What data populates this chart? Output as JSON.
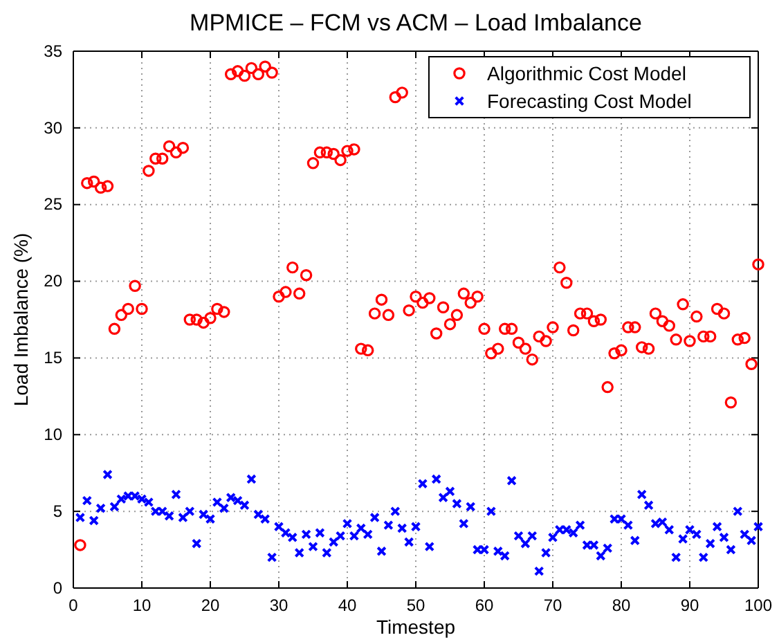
{
  "chart_data": {
    "type": "scatter",
    "title": "MPMICE – FCM vs ACM – Load Imbalance",
    "xlabel": "Timestep",
    "ylabel": "Load Imbalance (%)",
    "x": [
      1,
      2,
      3,
      4,
      5,
      6,
      7,
      8,
      9,
      10,
      11,
      12,
      13,
      14,
      15,
      16,
      17,
      18,
      19,
      20,
      21,
      22,
      23,
      24,
      25,
      26,
      27,
      28,
      29,
      30,
      31,
      32,
      33,
      34,
      35,
      36,
      37,
      38,
      39,
      40,
      41,
      42,
      43,
      44,
      45,
      46,
      47,
      48,
      49,
      50,
      51,
      52,
      53,
      54,
      55,
      56,
      57,
      58,
      59,
      60,
      61,
      62,
      63,
      64,
      65,
      66,
      67,
      68,
      69,
      70,
      71,
      72,
      73,
      74,
      75,
      76,
      77,
      78,
      79,
      80,
      81,
      82,
      83,
      84,
      85,
      86,
      87,
      88,
      89,
      90,
      91,
      92,
      93,
      94,
      95,
      96,
      97,
      98,
      99,
      100
    ],
    "series": [
      {
        "name": "Algorithmic Cost Model",
        "color": "#ff0000",
        "marker": "circle",
        "values": [
          2.8,
          26.4,
          26.5,
          26.1,
          26.2,
          16.9,
          17.8,
          18.2,
          19.7,
          18.2,
          27.2,
          28.0,
          28.0,
          28.8,
          28.4,
          28.7,
          17.5,
          17.5,
          17.3,
          17.6,
          18.2,
          18.0,
          33.5,
          33.7,
          33.4,
          33.9,
          33.5,
          34.0,
          33.6,
          19.0,
          19.3,
          20.9,
          19.2,
          20.4,
          27.7,
          28.4,
          28.4,
          28.3,
          27.9,
          28.5,
          28.6,
          15.6,
          15.5,
          17.9,
          18.8,
          17.8,
          32.0,
          32.3,
          18.1,
          19.0,
          18.6,
          18.9,
          16.6,
          18.3,
          17.2,
          17.8,
          19.2,
          18.6,
          19.0,
          16.9,
          15.3,
          15.6,
          16.9,
          16.9,
          16.0,
          15.6,
          14.9,
          16.4,
          16.1,
          17.0,
          20.9,
          19.9,
          16.8,
          17.9,
          17.9,
          17.4,
          17.5,
          13.1,
          15.3,
          15.5,
          17.0,
          17.0,
          15.7,
          15.6,
          17.9,
          17.4,
          17.1,
          16.2,
          18.5,
          16.1,
          17.7,
          16.4,
          16.4,
          18.2,
          17.9,
          12.1,
          16.2,
          16.3,
          14.6,
          21.1
        ]
      },
      {
        "name": "Forecasting Cost Model",
        "color": "#0000ff",
        "marker": "cross",
        "values": [
          4.6,
          5.7,
          4.4,
          5.2,
          7.4,
          5.3,
          5.8,
          6.0,
          6.0,
          5.8,
          5.6,
          5.0,
          5.0,
          4.7,
          6.1,
          4.6,
          5.0,
          2.9,
          4.8,
          4.5,
          5.6,
          5.2,
          5.9,
          5.7,
          5.4,
          7.1,
          4.8,
          4.5,
          2.0,
          4.0,
          3.6,
          3.3,
          2.3,
          3.5,
          2.7,
          3.6,
          2.3,
          3.0,
          3.4,
          4.2,
          3.4,
          3.9,
          3.5,
          4.6,
          2.4,
          4.1,
          5.0,
          3.9,
          3.0,
          4.0,
          6.8,
          2.7,
          7.1,
          5.9,
          6.3,
          5.5,
          4.2,
          5.3,
          2.5,
          2.5,
          5.0,
          2.4,
          2.1,
          7.0,
          3.4,
          2.9,
          3.4,
          1.1,
          2.3,
          3.3,
          3.8,
          3.8,
          3.6,
          4.1,
          2.8,
          2.8,
          2.1,
          2.6,
          4.5,
          4.5,
          4.1,
          3.1,
          6.1,
          5.4,
          4.2,
          4.3,
          3.8,
          2.0,
          3.2,
          3.8,
          3.5,
          2.0,
          2.9,
          4.0,
          3.3,
          2.5,
          5.0,
          3.5,
          3.1,
          4.0
        ]
      }
    ],
    "xlim": [
      0,
      100
    ],
    "xticks": [
      0,
      10,
      20,
      30,
      40,
      50,
      60,
      70,
      80,
      90,
      100
    ],
    "ylim": [
      0,
      35
    ],
    "yticks": [
      0,
      5,
      10,
      15,
      20,
      25,
      30,
      35
    ],
    "grid": true,
    "legend": "top right"
  }
}
